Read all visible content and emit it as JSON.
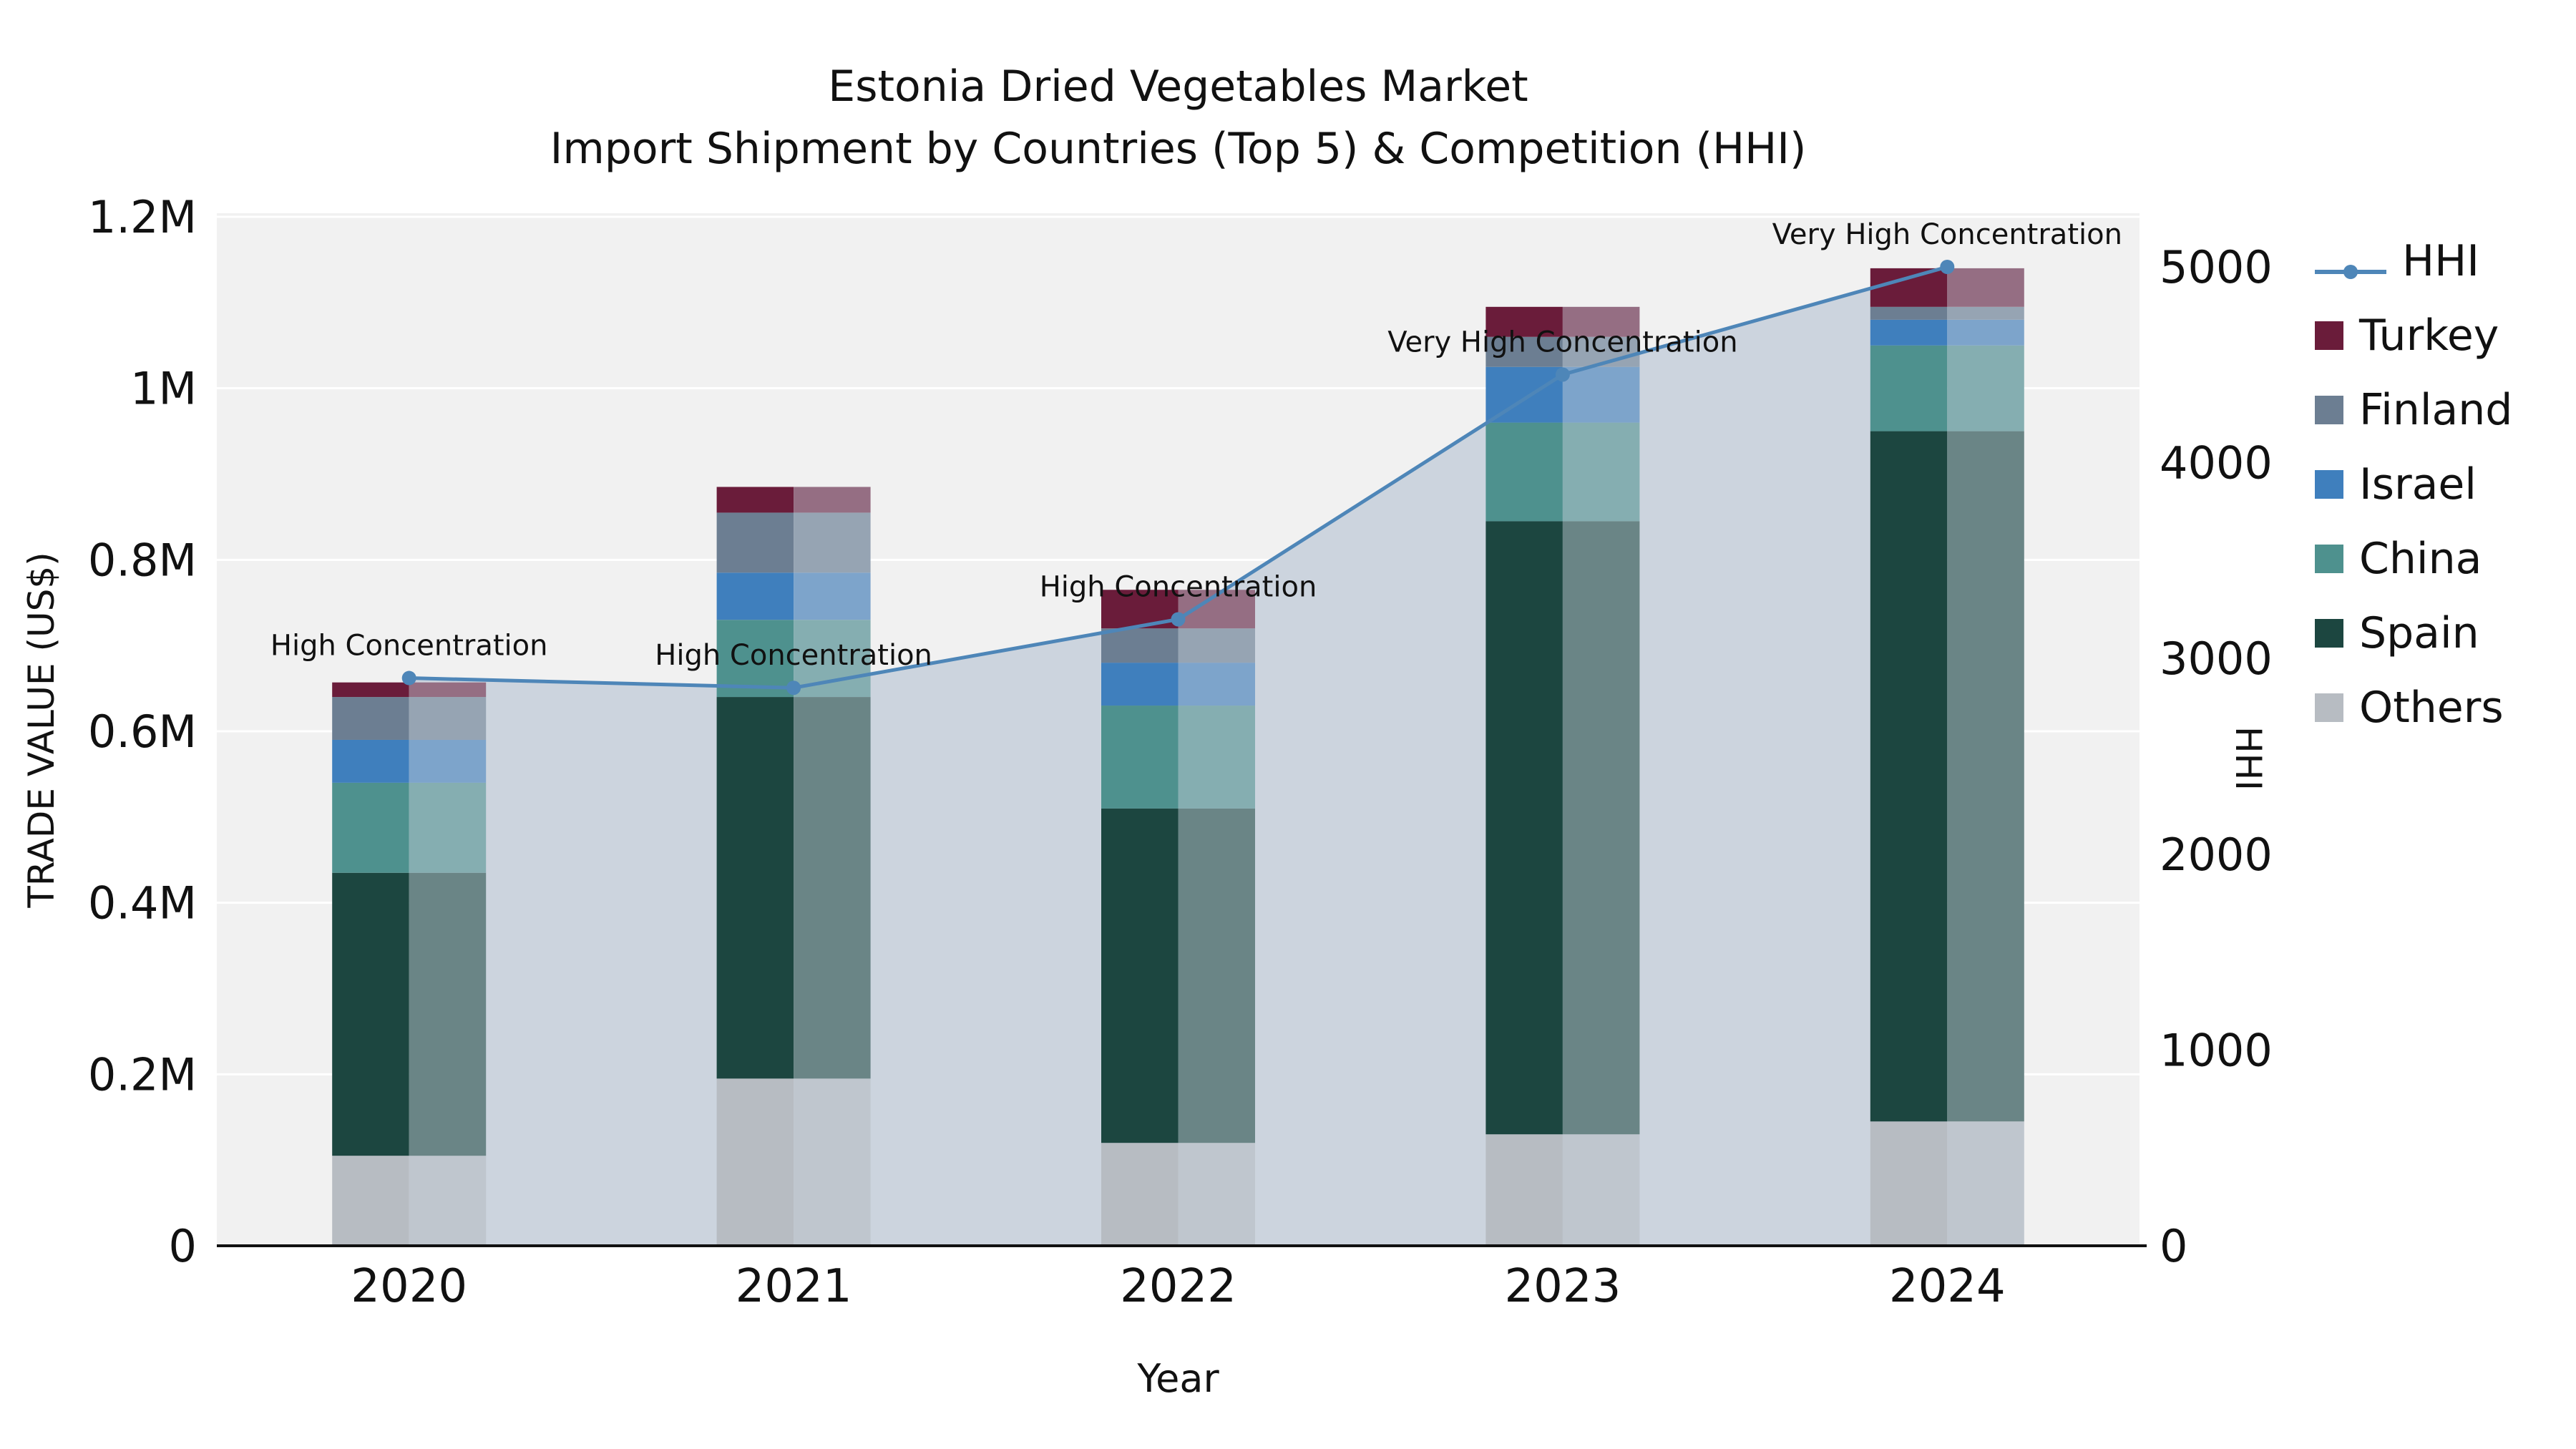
{
  "title": {
    "line1": "Estonia Dried Vegetables Market",
    "line2": "Import Shipment by Countries (Top 5) & Competition (HHI)"
  },
  "axes": {
    "y_left": {
      "title": "TRADE VALUE (US$)",
      "tick_labels": [
        "0",
        "0.2M",
        "0.4M",
        "0.6M",
        "0.8M",
        "1M",
        "1.2M"
      ],
      "tick_values": [
        0,
        200000,
        400000,
        600000,
        800000,
        1000000,
        1200000
      ],
      "max": 1200000
    },
    "y_right": {
      "title": "HHI",
      "tick_labels": [
        "0",
        "1000",
        "2000",
        "3000",
        "4000",
        "5000"
      ],
      "tick_values": [
        0,
        1000,
        2000,
        3000,
        4000,
        5000
      ],
      "max": 5000
    },
    "x": {
      "title": "Year"
    }
  },
  "chart_data": {
    "type": "bar",
    "subtype": "stacked-bar-with-line",
    "categories": [
      "2020",
      "2021",
      "2022",
      "2023",
      "2024"
    ],
    "stack_order": [
      "Others",
      "Spain",
      "China",
      "Israel",
      "Finland",
      "Turkey"
    ],
    "series": [
      {
        "name": "Others",
        "color": "#b7bcc2",
        "values": [
          105000,
          195000,
          120000,
          130000,
          145000
        ]
      },
      {
        "name": "Spain",
        "color": "#1c4640",
        "values": [
          330000,
          445000,
          390000,
          715000,
          805000
        ]
      },
      {
        "name": "China",
        "color": "#4e918e",
        "values": [
          105000,
          90000,
          120000,
          115000,
          100000
        ]
      },
      {
        "name": "Israel",
        "color": "#3f7fbd",
        "values": [
          50000,
          55000,
          50000,
          65000,
          30000
        ]
      },
      {
        "name": "Finland",
        "color": "#6c7e92",
        "values": [
          50000,
          70000,
          40000,
          35000,
          15000
        ]
      },
      {
        "name": "Turkey",
        "color": "#6a1c3a",
        "values": [
          17000,
          30000,
          45000,
          35000,
          45000
        ]
      }
    ],
    "totals": [
      657000,
      885000,
      765000,
      1095000,
      1140000
    ],
    "line": {
      "name": "HHI",
      "color": "#4e86b8",
      "axis": "right",
      "values": [
        2900,
        2850,
        3200,
        4450,
        5000
      ],
      "area_fill_color": "#c9d2dc"
    },
    "annotations": [
      {
        "category": "2020",
        "text": "High Concentration"
      },
      {
        "category": "2021",
        "text": "High Concentration"
      },
      {
        "category": "2022",
        "text": "High Concentration"
      },
      {
        "category": "2023",
        "text": "Very High Concentration"
      },
      {
        "category": "2024",
        "text": "Very High Concentration"
      }
    ],
    "plot_bg": "#f1f1f1",
    "grid_color": "#ffffff",
    "legend_position": "right"
  },
  "legend": {
    "entries": [
      {
        "label": "HHI",
        "type": "line",
        "color": "#4e86b8"
      },
      {
        "label": "Turkey",
        "type": "swatch",
        "color": "#6a1c3a"
      },
      {
        "label": "Finland",
        "type": "swatch",
        "color": "#6c7e92"
      },
      {
        "label": "Israel",
        "type": "swatch",
        "color": "#3f7fbd"
      },
      {
        "label": "China",
        "type": "swatch",
        "color": "#4e918e"
      },
      {
        "label": "Spain",
        "type": "swatch",
        "color": "#1c4640"
      },
      {
        "label": "Others",
        "type": "swatch",
        "color": "#b7bcc2"
      }
    ]
  }
}
